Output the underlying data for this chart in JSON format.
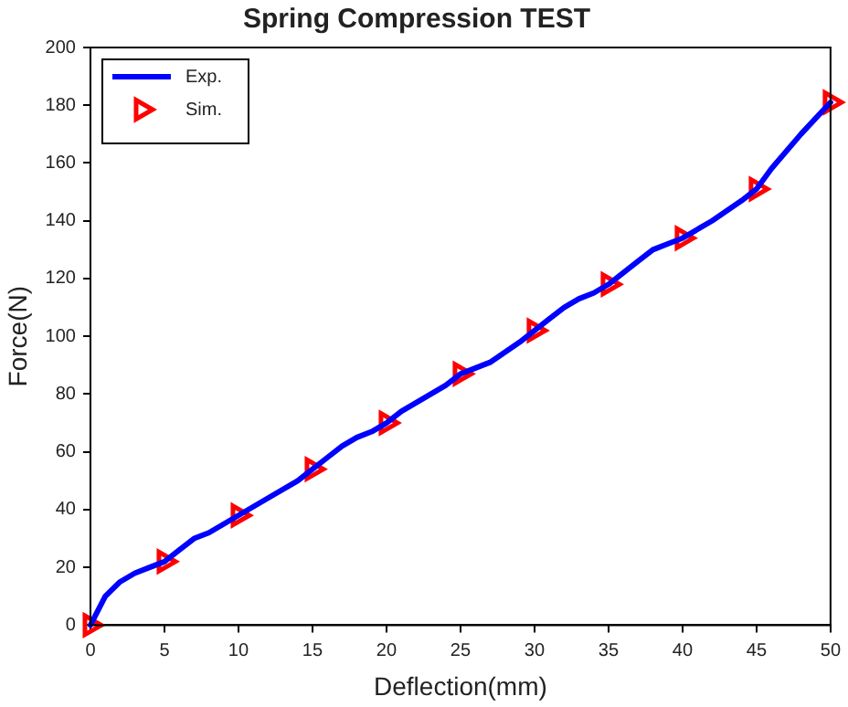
{
  "chart_data": {
    "type": "line",
    "title": "Spring Compression TEST",
    "xlabel": "Deflection(mm)",
    "ylabel": "Force(N)",
    "xlim": [
      0,
      50
    ],
    "xticks": [
      0,
      5,
      10,
      15,
      20,
      25,
      30,
      35,
      40,
      45,
      50
    ],
    "ylim": [
      0,
      200
    ],
    "yticks": [
      0,
      20,
      40,
      60,
      80,
      100,
      120,
      140,
      160,
      180,
      200
    ],
    "grid": false,
    "legend": "top left",
    "series": [
      {
        "name": "Exp.",
        "type": "line",
        "color": "#0000ff",
        "marker": "none",
        "line_style": "solid",
        "x": [
          0,
          1,
          2,
          3,
          4,
          5,
          6,
          7,
          8,
          9,
          10,
          12,
          14,
          15,
          16,
          17,
          18,
          19,
          20,
          21,
          22,
          23,
          24,
          25,
          27,
          29,
          30,
          31,
          32,
          33,
          34,
          35,
          36,
          37,
          38,
          39,
          40,
          42,
          44,
          45,
          46,
          48,
          50
        ],
        "values": [
          0,
          10,
          15,
          18,
          20,
          22,
          26,
          30,
          32,
          35,
          38,
          44,
          50,
          54,
          58,
          62,
          65,
          67,
          70,
          74,
          77,
          80,
          83,
          87,
          91,
          98,
          102,
          106,
          110,
          113,
          115,
          118,
          122,
          126,
          130,
          132,
          134,
          140,
          147,
          151,
          158,
          170,
          181
        ]
      },
      {
        "name": "Sim.",
        "type": "scatter",
        "color": "#ff0000",
        "marker": "triangle",
        "x": [
          0,
          5,
          10,
          15,
          20,
          25,
          30,
          35,
          40,
          45,
          50
        ],
        "values": [
          0,
          22,
          38,
          54,
          70,
          87,
          102,
          118,
          134,
          151,
          181
        ]
      }
    ]
  }
}
